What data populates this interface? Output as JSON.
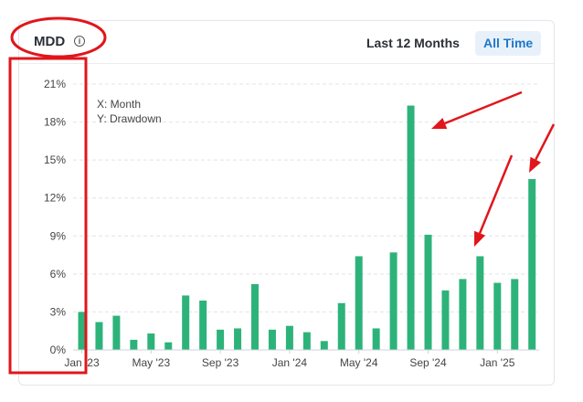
{
  "header": {
    "title": "MDD",
    "info_glyph": "i",
    "tabs": [
      {
        "label": "Last 12 Months",
        "active": false
      },
      {
        "label": "All Time",
        "active": true
      }
    ]
  },
  "legend": {
    "x_text": "X: Month",
    "y_text": "Y: Drawdown"
  },
  "colors": {
    "bar": "#2db37a",
    "accent": "#1e78c8",
    "annotation": "#e0161b"
  },
  "chart_data": {
    "type": "bar",
    "title": "MDD",
    "xlabel": "Month",
    "ylabel": "Drawdown",
    "ylim": [
      0,
      21
    ],
    "yticks": [
      "0%",
      "3%",
      "6%",
      "9%",
      "12%",
      "15%",
      "18%",
      "21%"
    ],
    "xticks": [
      {
        "index": 0,
        "label": "Jan '23"
      },
      {
        "index": 4,
        "label": "May '23"
      },
      {
        "index": 8,
        "label": "Sep '23"
      },
      {
        "index": 12,
        "label": "Jan '24"
      },
      {
        "index": 16,
        "label": "May '24"
      },
      {
        "index": 20,
        "label": "Sep '24"
      },
      {
        "index": 24,
        "label": "Jan '25"
      }
    ],
    "categories": [
      "Jan '23",
      "Feb '23",
      "Mar '23",
      "Apr '23",
      "May '23",
      "Jun '23",
      "Jul '23",
      "Aug '23",
      "Sep '23",
      "Oct '23",
      "Nov '23",
      "Dec '23",
      "Jan '24",
      "Feb '24",
      "Mar '24",
      "Apr '24",
      "May '24",
      "Jun '24",
      "Jul '24",
      "Aug '24",
      "Sep '24",
      "Oct '24",
      "Nov '24",
      "Dec '24",
      "Jan '25",
      "Feb '25",
      "Mar '25"
    ],
    "values": [
      3.0,
      2.2,
      2.7,
      0.8,
      1.3,
      0.6,
      4.3,
      3.9,
      1.6,
      1.7,
      5.2,
      1.6,
      1.9,
      1.4,
      0.7,
      3.7,
      7.4,
      1.7,
      7.7,
      19.3,
      9.1,
      4.7,
      5.6,
      7.4,
      5.3,
      5.6,
      13.5
    ],
    "grid": true,
    "legend": "top-left"
  }
}
